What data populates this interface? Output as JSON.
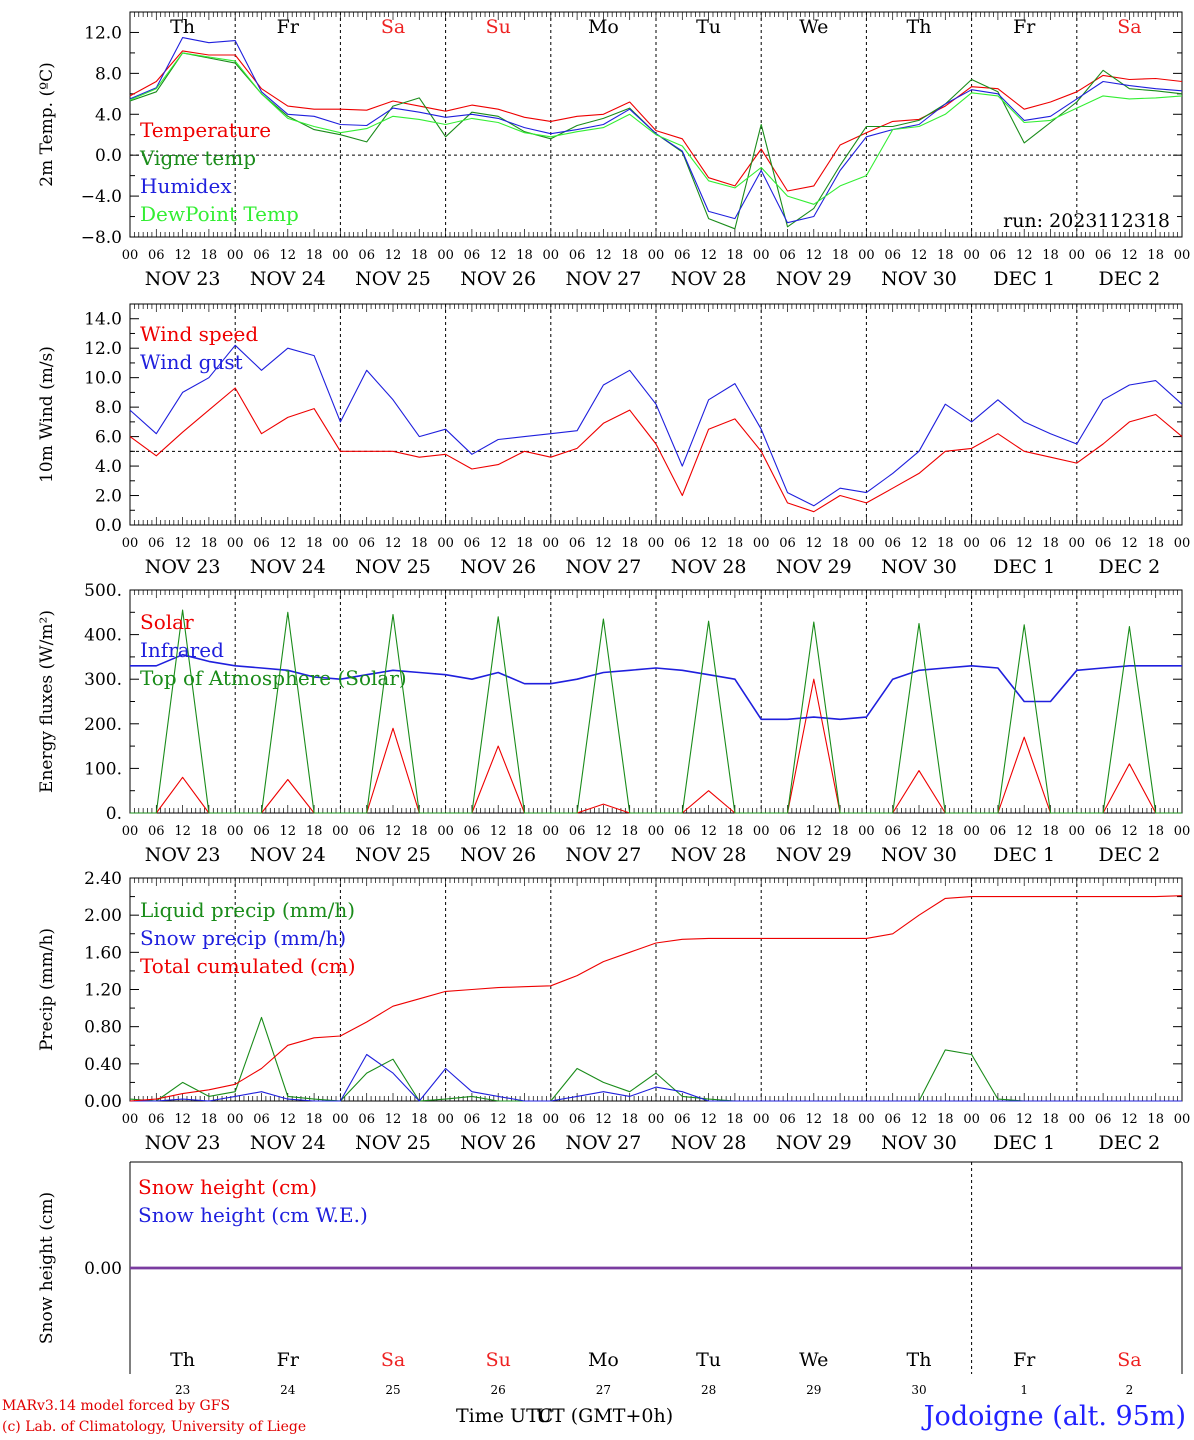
{
  "colors": {
    "red": "#ee0000",
    "green": "#1a8c1a",
    "blue": "#1f1fdd",
    "light_green": "#33ee33",
    "weekend": "#ee2222",
    "snow_line": "#7a3ca0"
  },
  "time_axis": {
    "hour_labels": [
      "00",
      "06",
      "12",
      "18"
    ],
    "end_label": "00",
    "dates": [
      "NOV 23",
      "NOV 24",
      "NOV 25",
      "NOV 26",
      "NOV 27",
      "NOV 28",
      "NOV 29",
      "NOV 30",
      "DEC  1",
      "DEC  2"
    ],
    "weekdays": [
      "Th",
      "Fr",
      "Sa",
      "Su",
      "Mo",
      "Tu",
      "We",
      "Th",
      "Fr",
      "Sa"
    ],
    "weekend_flags": [
      false,
      false,
      true,
      true,
      false,
      false,
      false,
      false,
      false,
      true
    ],
    "day_numbers": [
      "23",
      "24",
      "25",
      "26",
      "27",
      "28",
      "29",
      "30",
      "1",
      "2"
    ]
  },
  "footer": {
    "model": "MARv3.14 model forced by GFS",
    "credit": "(c) Lab. of Climatology, University of Liege",
    "time_label": "Time UTC",
    "tz_label": "UT (GMT+0h)",
    "location": "Jodoigne (alt. 95m)"
  },
  "chart_data": [
    {
      "type": "line",
      "ylabel": "2m Temp. (ºC)",
      "ylim": [
        -8,
        14
      ],
      "yticks": [
        -8,
        -4,
        0,
        4,
        8,
        12
      ],
      "tick_labels": [
        "−8.0",
        "−4.0",
        "0.0",
        "4.0",
        "8.0",
        "12.0"
      ],
      "ref_line": 0,
      "annotation": "run: 2023112318",
      "x": [
        0,
        6,
        12,
        18,
        24,
        30,
        36,
        42,
        48,
        54,
        60,
        66,
        72,
        78,
        84,
        90,
        96,
        102,
        108,
        114,
        120,
        126,
        132,
        138,
        144,
        150,
        156,
        162,
        168,
        174,
        180,
        186,
        192,
        198,
        204,
        210,
        216,
        222,
        228,
        234,
        240
      ],
      "series": [
        {
          "name": "Temperature",
          "color": "red",
          "values": [
            5.8,
            7.2,
            10.2,
            9.8,
            9.8,
            6.5,
            4.8,
            4.5,
            4.5,
            4.4,
            5.3,
            4.8,
            4.3,
            4.9,
            4.5,
            3.7,
            3.3,
            3.8,
            4.0,
            5.2,
            2.4,
            1.6,
            -2.2,
            -3.0,
            0.6,
            -3.5,
            -3.0,
            1.0,
            2.2,
            3.3,
            3.5,
            4.8,
            6.7,
            6.5,
            4.5,
            5.2,
            6.2,
            7.8,
            7.4,
            7.5,
            7.2
          ]
        },
        {
          "name": "Vigne temp",
          "color": "green",
          "values": [
            5.3,
            6.2,
            10.0,
            9.5,
            9.0,
            6.0,
            3.8,
            2.5,
            2.0,
            1.3,
            4.8,
            5.6,
            1.8,
            4.2,
            3.8,
            2.3,
            1.6,
            2.9,
            3.6,
            4.6,
            2.1,
            0.3,
            -6.2,
            -7.2,
            3.0,
            -7.0,
            -5.2,
            -1.0,
            2.8,
            2.8,
            3.4,
            5.0,
            7.4,
            6.2,
            1.2,
            3.2,
            5.2,
            8.3,
            6.5,
            6.3,
            6.0
          ]
        },
        {
          "name": "Humidex",
          "color": "blue",
          "values": [
            5.5,
            6.6,
            11.5,
            11.0,
            11.2,
            6.2,
            4.0,
            3.8,
            3.0,
            2.9,
            4.6,
            4.2,
            3.7,
            4.0,
            3.6,
            2.7,
            2.1,
            2.5,
            3.0,
            4.5,
            2.1,
            0.4,
            -5.5,
            -6.2,
            -1.5,
            -6.6,
            -6.0,
            -1.5,
            1.8,
            2.5,
            3.0,
            5.0,
            6.4,
            6.0,
            3.4,
            3.8,
            5.5,
            7.2,
            6.8,
            6.5,
            6.3
          ]
        },
        {
          "name": "DewPoint Temp",
          "color": "light_green",
          "values": [
            5.4,
            6.5,
            10.0,
            9.6,
            9.2,
            6.0,
            3.6,
            2.8,
            2.2,
            2.6,
            3.8,
            3.5,
            3.0,
            3.6,
            3.2,
            2.2,
            1.8,
            2.3,
            2.7,
            4.0,
            2.0,
            0.9,
            -2.5,
            -3.2,
            -1.2,
            -4.0,
            -4.8,
            -3.0,
            -2.0,
            2.5,
            2.8,
            4.0,
            6.1,
            5.8,
            3.2,
            3.4,
            4.6,
            5.8,
            5.5,
            5.6,
            5.8
          ]
        }
      ]
    },
    {
      "type": "line",
      "ylabel": "10m Wind (m/s)",
      "ylim": [
        0,
        15
      ],
      "yticks": [
        0,
        2,
        4,
        6,
        8,
        10,
        12,
        14
      ],
      "tick_labels": [
        "0.0",
        "2.0",
        "4.0",
        "6.0",
        "8.0",
        "10.0",
        "12.0",
        "14.0"
      ],
      "ref_line": 5,
      "x": [
        0,
        6,
        12,
        18,
        24,
        30,
        36,
        42,
        48,
        54,
        60,
        66,
        72,
        78,
        84,
        90,
        96,
        102,
        108,
        114,
        120,
        126,
        132,
        138,
        144,
        150,
        156,
        162,
        168,
        174,
        180,
        186,
        192,
        198,
        204,
        210,
        216,
        222,
        228,
        234,
        240
      ],
      "series": [
        {
          "name": "Wind speed",
          "color": "red",
          "values": [
            6.0,
            4.7,
            6.3,
            7.8,
            9.3,
            6.2,
            7.3,
            7.9,
            5.0,
            5.0,
            5.0,
            4.6,
            4.8,
            3.8,
            4.1,
            5.0,
            4.6,
            5.2,
            6.9,
            7.8,
            5.5,
            2.0,
            6.5,
            7.2,
            5.0,
            1.5,
            0.9,
            2.0,
            1.5,
            2.5,
            3.5,
            5.0,
            5.2,
            6.2,
            5.0,
            4.6,
            4.2,
            5.5,
            7.0,
            7.5,
            6.0
          ]
        },
        {
          "name": "Wind gust",
          "color": "blue",
          "values": [
            7.8,
            6.2,
            9.0,
            10.0,
            12.2,
            10.5,
            12.0,
            11.5,
            7.0,
            10.5,
            8.5,
            6.0,
            6.5,
            4.8,
            5.8,
            6.0,
            6.2,
            6.4,
            9.5,
            10.5,
            8.2,
            4.0,
            8.5,
            9.6,
            6.5,
            2.2,
            1.3,
            2.5,
            2.2,
            3.5,
            5.0,
            8.2,
            7.0,
            8.5,
            7.0,
            6.2,
            5.5,
            8.5,
            9.5,
            9.8,
            8.2
          ]
        }
      ]
    },
    {
      "type": "line",
      "ylabel": "Energy fluxes (W/m²)",
      "ylim": [
        0,
        500
      ],
      "yticks": [
        0,
        100,
        200,
        300,
        400,
        500
      ],
      "tick_labels": [
        "0.",
        "100.",
        "200.",
        "300.",
        "400.",
        "500."
      ],
      "ref_line": null,
      "x": [
        0,
        6,
        12,
        18,
        24,
        30,
        36,
        42,
        48,
        54,
        60,
        66,
        72,
        78,
        84,
        90,
        96,
        102,
        108,
        114,
        120,
        126,
        132,
        138,
        144,
        150,
        156,
        162,
        168,
        174,
        180,
        186,
        192,
        198,
        204,
        210,
        216,
        222,
        228,
        234,
        240
      ],
      "series": [
        {
          "name": "Solar",
          "color": "red",
          "values": [
            0,
            0,
            80,
            0,
            0,
            0,
            75,
            0,
            0,
            0,
            190,
            0,
            0,
            0,
            150,
            0,
            0,
            0,
            20,
            0,
            0,
            0,
            50,
            0,
            0,
            0,
            300,
            0,
            0,
            0,
            95,
            0,
            0,
            0,
            170,
            0,
            0,
            0,
            110,
            0,
            0
          ]
        },
        {
          "name": "Infrared",
          "color": "blue",
          "values": [
            330,
            330,
            355,
            340,
            330,
            325,
            320,
            305,
            300,
            310,
            320,
            315,
            310,
            300,
            315,
            290,
            290,
            300,
            315,
            320,
            325,
            320,
            310,
            300,
            210,
            210,
            215,
            210,
            215,
            300,
            320,
            325,
            330,
            325,
            250,
            250,
            320,
            325,
            330,
            330,
            330
          ]
        },
        {
          "name": "Top of Atmosphere (Solar)",
          "color": "green",
          "values": [
            0,
            0,
            455,
            0,
            0,
            0,
            450,
            0,
            0,
            0,
            445,
            0,
            0,
            0,
            440,
            0,
            0,
            0,
            435,
            0,
            0,
            0,
            430,
            0,
            0,
            0,
            428,
            0,
            0,
            0,
            425,
            0,
            0,
            0,
            422,
            0,
            0,
            0,
            418,
            0,
            0
          ]
        }
      ]
    },
    {
      "type": "line",
      "ylabel": "Precip (mm/h)",
      "ylim": [
        0,
        2.4
      ],
      "yticks": [
        0,
        0.4,
        0.8,
        1.2,
        1.6,
        2.0,
        2.4
      ],
      "tick_labels": [
        "0.00",
        "0.40",
        "0.80",
        "1.20",
        "1.60",
        "2.00",
        "2.40"
      ],
      "ref_line": null,
      "x": [
        0,
        6,
        12,
        18,
        24,
        30,
        36,
        42,
        48,
        54,
        60,
        66,
        72,
        78,
        84,
        90,
        96,
        102,
        108,
        114,
        120,
        126,
        132,
        138,
        144,
        150,
        156,
        162,
        168,
        174,
        180,
        186,
        192,
        198,
        204,
        210,
        216,
        222,
        228,
        234,
        240
      ],
      "series": [
        {
          "name": "Liquid precip (mm/h)",
          "color": "green",
          "values": [
            0.02,
            0.0,
            0.2,
            0.05,
            0.1,
            0.9,
            0.05,
            0.02,
            0.0,
            0.3,
            0.45,
            0.0,
            0.02,
            0.05,
            0.0,
            0.0,
            0.0,
            0.35,
            0.2,
            0.1,
            0.3,
            0.05,
            0.02,
            0.0,
            0.0,
            0.0,
            0.0,
            0.0,
            0.0,
            0.0,
            0.0,
            0.55,
            0.5,
            0.02,
            0.0,
            0.0,
            0.0,
            0.0,
            0.0,
            0.0,
            0.0
          ]
        },
        {
          "name": "Snow precip (mm/h)",
          "color": "blue",
          "values": [
            0.0,
            0.0,
            0.02,
            0.0,
            0.05,
            0.1,
            0.02,
            0.0,
            0.0,
            0.5,
            0.3,
            0.0,
            0.35,
            0.1,
            0.05,
            0.0,
            0.0,
            0.05,
            0.1,
            0.05,
            0.15,
            0.1,
            0.0,
            0.0,
            0.0,
            0.0,
            0.0,
            0.0,
            0.0,
            0.0,
            0.0,
            0.0,
            0.0,
            0.0,
            0.0,
            0.0,
            0.0,
            0.0,
            0.0,
            0.0,
            0.0
          ]
        },
        {
          "name": "Total cumulated (cm)",
          "color": "red",
          "values": [
            0.0,
            0.02,
            0.08,
            0.12,
            0.18,
            0.35,
            0.6,
            0.68,
            0.7,
            0.85,
            1.02,
            1.1,
            1.18,
            1.2,
            1.22,
            1.23,
            1.24,
            1.35,
            1.5,
            1.6,
            1.7,
            1.74,
            1.75,
            1.75,
            1.75,
            1.75,
            1.75,
            1.75,
            1.75,
            1.8,
            2.0,
            2.18,
            2.2,
            2.2,
            2.2,
            2.2,
            2.2,
            2.2,
            2.2,
            2.2,
            2.21
          ]
        }
      ]
    },
    {
      "type": "line",
      "ylabel": "Snow height (cm)",
      "ylim": [
        -1,
        1
      ],
      "yticks": [
        0
      ],
      "tick_labels": [
        "0.00"
      ],
      "ref_line": null,
      "x": [
        0,
        240
      ],
      "series": [
        {
          "name": "Snow height (cm)",
          "color": "red",
          "values": [
            0,
            0
          ]
        },
        {
          "name": "Snow height (cm W.E.)",
          "color": "blue",
          "values": [
            0,
            0
          ]
        }
      ]
    }
  ]
}
